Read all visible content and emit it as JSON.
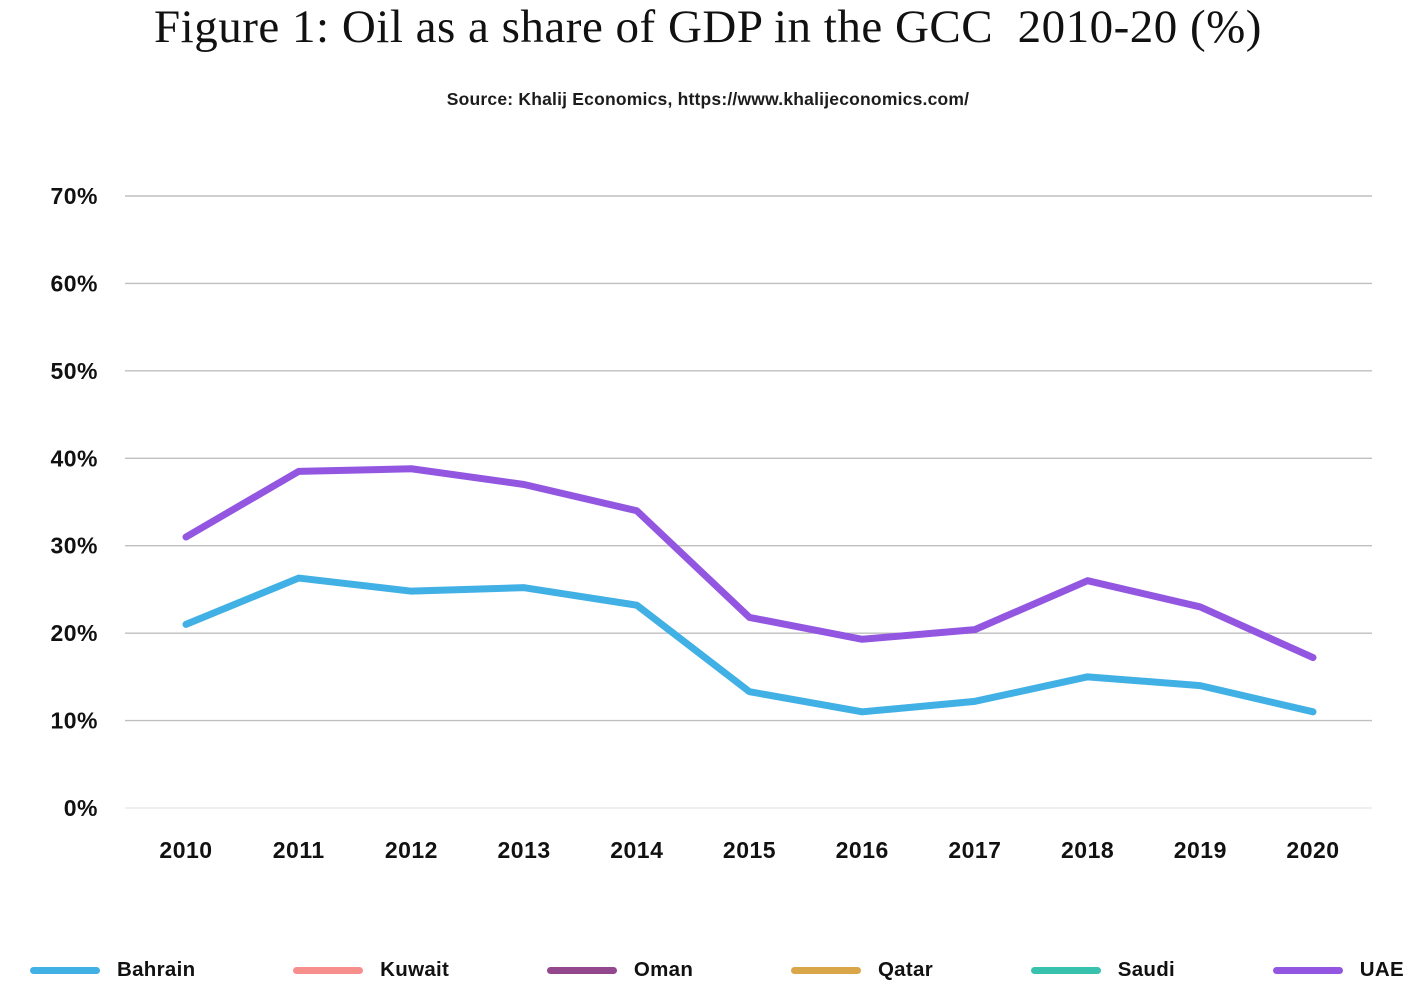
{
  "chart_data": {
    "type": "line",
    "title": "Figure 1: Oil as a share of GDP in the GCC  2010-20 (%)",
    "source": "Source: Khalij Economics, https://www.khalijeconomics.com/",
    "x": [
      2010,
      2011,
      2012,
      2013,
      2014,
      2015,
      2016,
      2017,
      2018,
      2019,
      2020
    ],
    "xlabel": "",
    "ylabel": "",
    "y_axis": {
      "min": 0,
      "max": 70,
      "tick_step": 10,
      "tick_labels": [
        "0%",
        "10%",
        "20%",
        "30%",
        "40%",
        "50%",
        "60%",
        "70%"
      ]
    },
    "grid": true,
    "series": [
      {
        "name": "Bahrain",
        "color": "#41b0e4",
        "values": [
          21.0,
          26.3,
          24.8,
          25.2,
          23.2,
          13.3,
          11.0,
          12.2,
          15.0,
          14.0,
          11.0
        ]
      },
      {
        "name": "UAE",
        "color": "#9356e0",
        "values": [
          31.0,
          38.5,
          38.8,
          37.0,
          34.0,
          21.8,
          19.3,
          20.4,
          26.0,
          23.0,
          17.2
        ]
      }
    ],
    "legend_position": "bottom",
    "legend": [
      {
        "label": "Bahrain",
        "color": "#41b0e4"
      },
      {
        "label": "Kuwait",
        "color": "#f78f8d"
      },
      {
        "label": "Oman",
        "color": "#93488d"
      },
      {
        "label": "Qatar",
        "color": "#d9a64a"
      },
      {
        "label": "Saudi",
        "color": "#38c1ad"
      },
      {
        "label": "UAE",
        "color": "#9356e0"
      }
    ],
    "colors": {
      "gridline": "#bfbfbf",
      "zero_line": "#efefef",
      "text": "#111111"
    }
  }
}
